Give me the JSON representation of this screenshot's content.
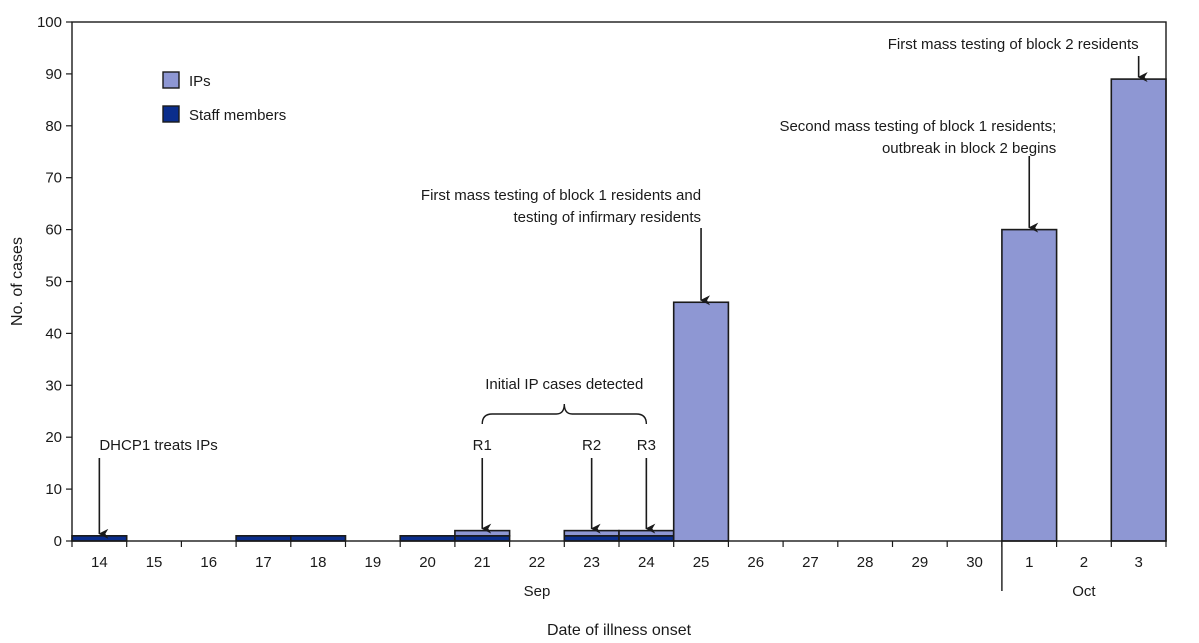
{
  "chart_data": {
    "type": "bar",
    "stacked": true,
    "ylabel": "No. of cases",
    "xlabel": "Date of illness onset",
    "ylim": [
      0,
      100
    ],
    "yticks": [
      0,
      10,
      20,
      30,
      40,
      50,
      60,
      70,
      80,
      90,
      100
    ],
    "categories": [
      "14",
      "15",
      "16",
      "17",
      "18",
      "19",
      "20",
      "21",
      "22",
      "23",
      "24",
      "25",
      "26",
      "27",
      "28",
      "29",
      "30",
      "1",
      "2",
      "3"
    ],
    "month_labels": [
      {
        "label": "Sep",
        "from": "14",
        "to": "30"
      },
      {
        "label": "Oct",
        "from": "1",
        "to": "3"
      }
    ],
    "series": [
      {
        "name": "Staff members",
        "color": "#0a2d8c",
        "values": [
          1,
          0,
          0,
          1,
          1,
          0,
          1,
          1,
          0,
          1,
          1,
          0,
          0,
          0,
          0,
          0,
          0,
          0,
          0,
          0
        ]
      },
      {
        "name": "IPs",
        "color": "#8e97d3",
        "values": [
          0,
          0,
          0,
          0,
          0,
          0,
          0,
          1,
          0,
          1,
          1,
          46,
          0,
          0,
          0,
          0,
          0,
          60,
          0,
          89
        ]
      }
    ],
    "legend": {
      "position": "top-left",
      "order": [
        "IPs",
        "Staff members"
      ]
    },
    "grid": false,
    "annotations": [
      {
        "id": "dhcp1",
        "lines": [
          "DHCP1 treats IPs"
        ],
        "category": "14",
        "value": 1
      },
      {
        "id": "r1",
        "lines": [
          "R1"
        ],
        "category": "21",
        "value": 2
      },
      {
        "id": "r2",
        "lines": [
          "R2"
        ],
        "category": "23",
        "value": 2
      },
      {
        "id": "r3",
        "lines": [
          "R3"
        ],
        "category": "24",
        "value": 2
      },
      {
        "id": "initial",
        "lines": [
          "Initial IP cases detected"
        ],
        "span": [
          "21",
          "24"
        ]
      },
      {
        "id": "mass1",
        "lines": [
          "First mass testing of block 1 residents and",
          "testing of infirmary residents"
        ],
        "category": "25",
        "value": 46
      },
      {
        "id": "mass2",
        "lines": [
          "Second mass testing of block 1 residents;",
          "outbreak in block 2 begins"
        ],
        "category": "1",
        "value": 60
      },
      {
        "id": "block2",
        "lines": [
          "First mass testing of block 2 residents"
        ],
        "category": "3",
        "value": 89
      }
    ]
  }
}
